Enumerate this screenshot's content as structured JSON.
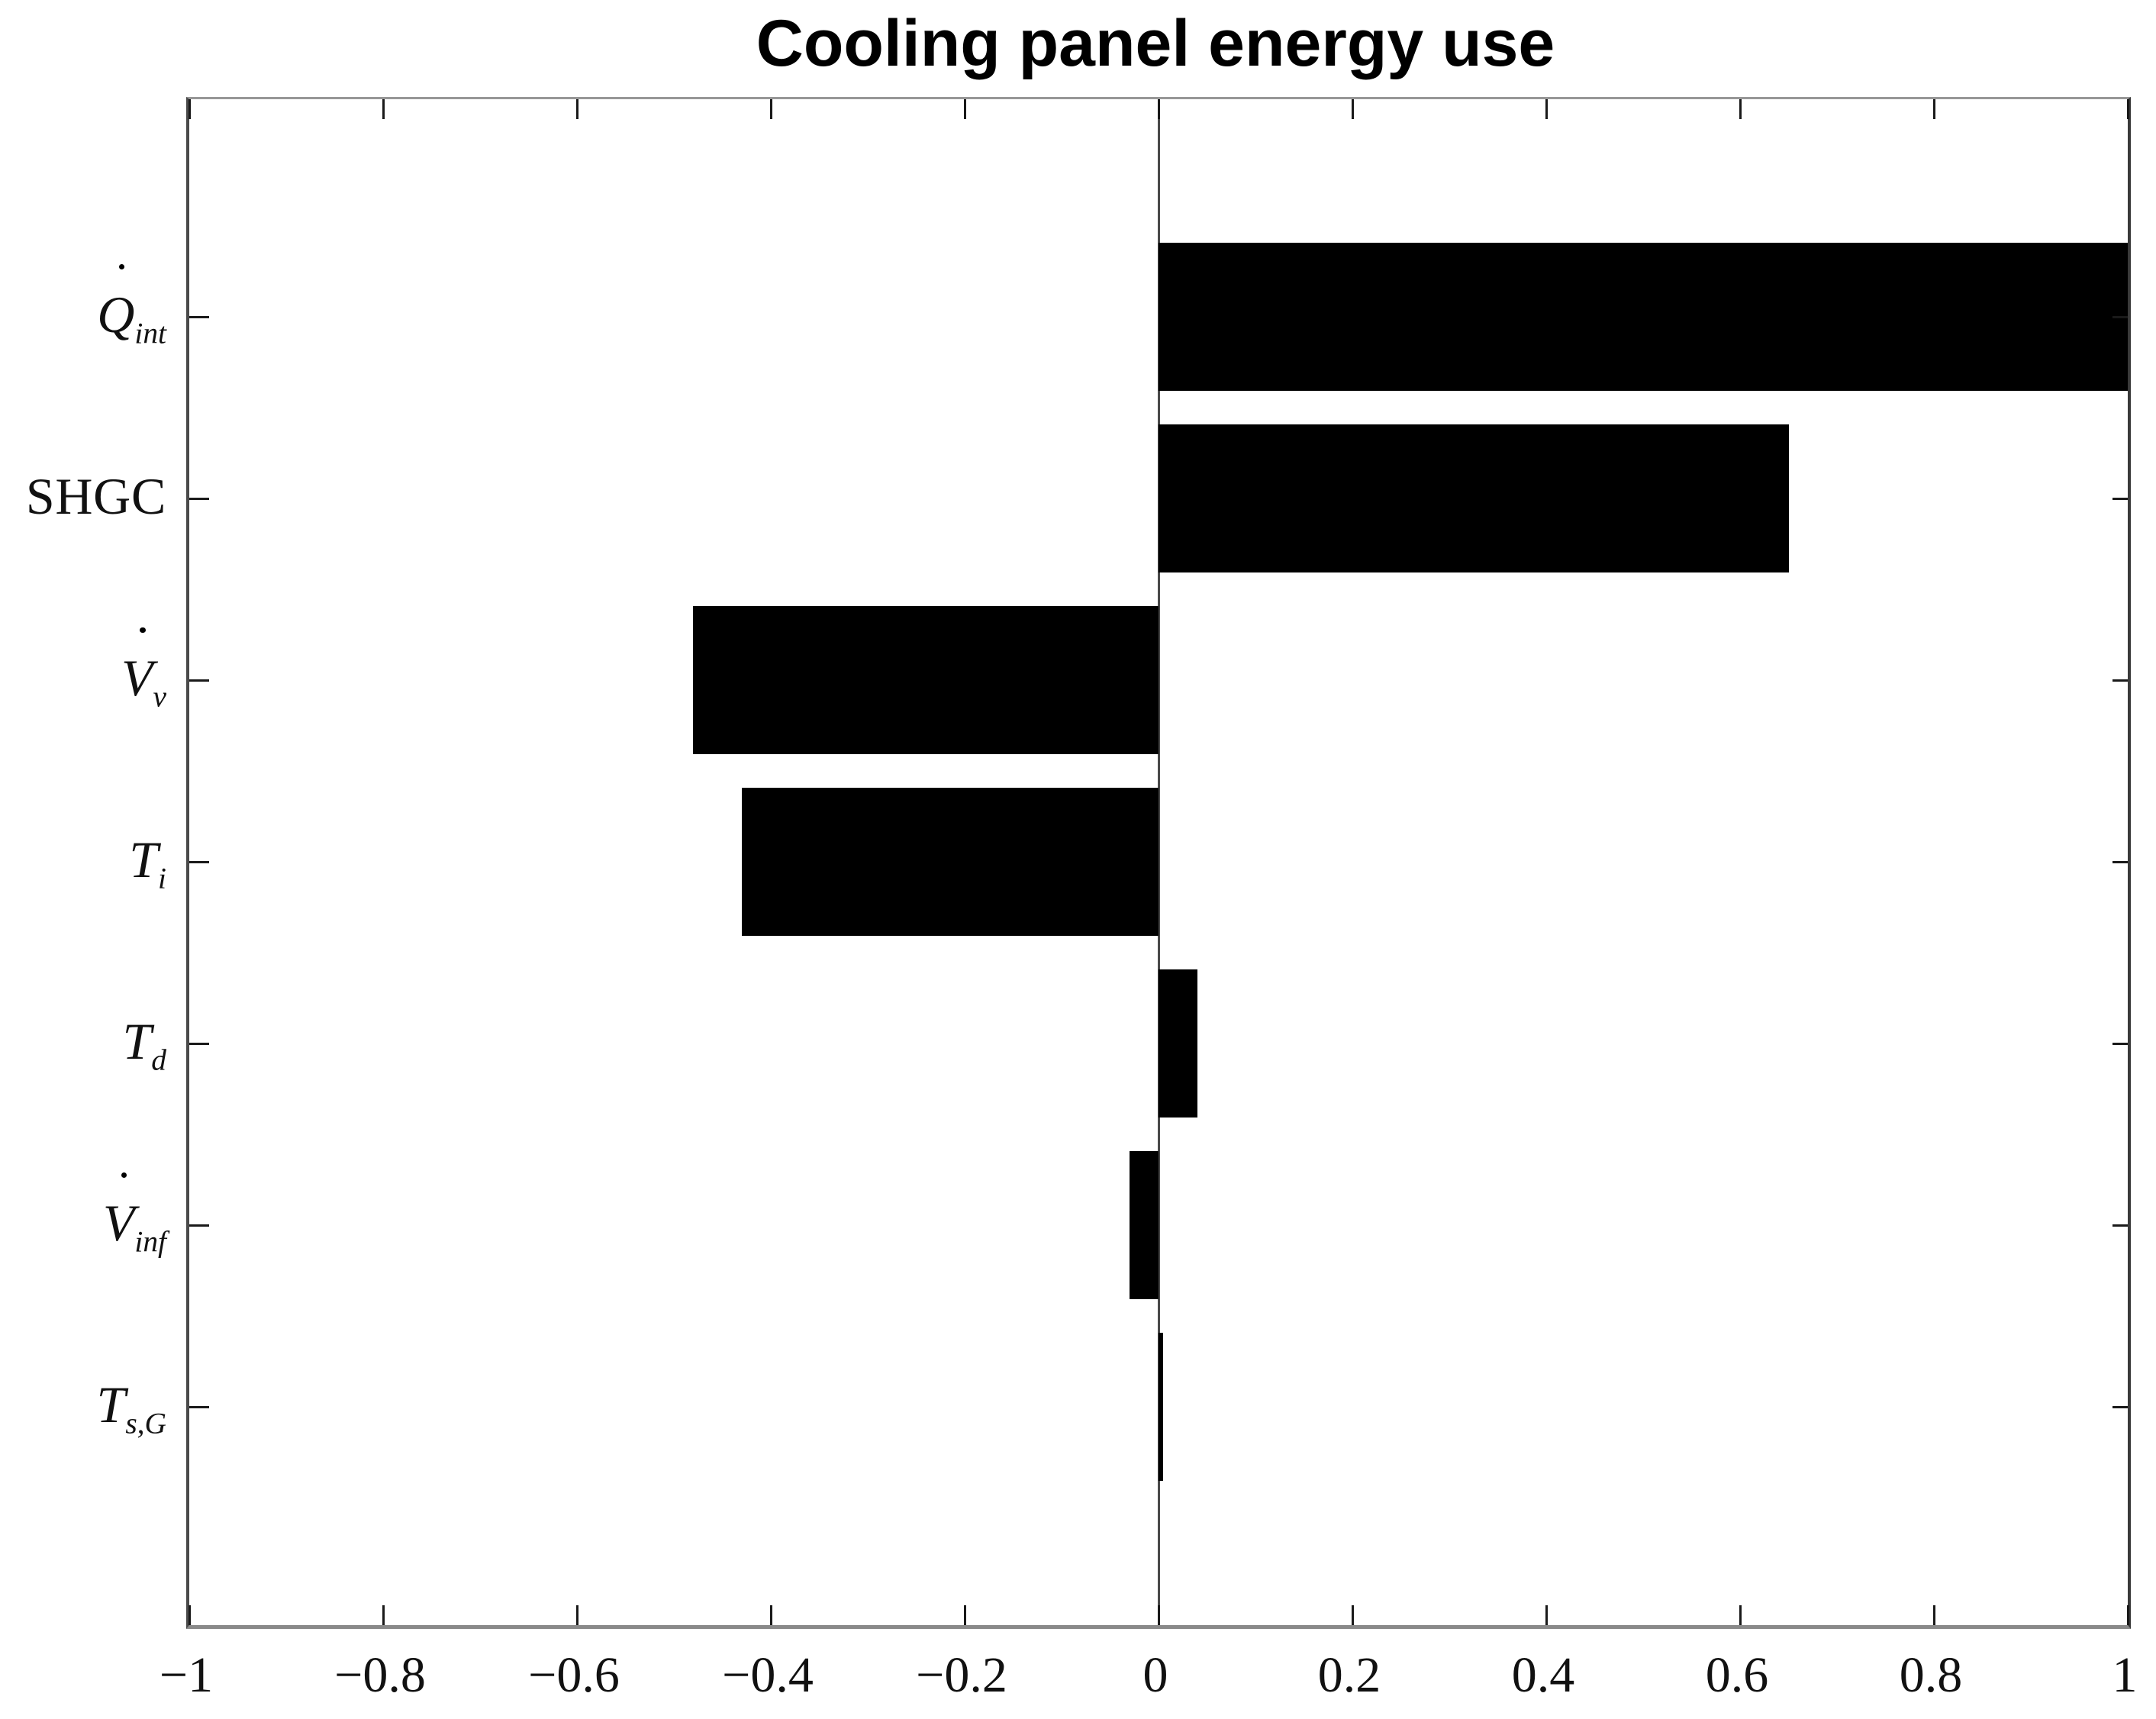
{
  "title": "Cooling panel energy use",
  "background_color": "#ffffff",
  "chart_data": {
    "type": "bar",
    "orientation": "horizontal",
    "title": "Cooling panel energy use",
    "categories": [
      "Q̇_int",
      "SHGC",
      "V̇_v",
      "T_i",
      "T_d",
      "V̇_inf",
      "T_s,G"
    ],
    "category_labels": [
      {
        "base": "Q",
        "overdot": true,
        "sub": "int",
        "italic": true
      },
      {
        "base": "SHGC",
        "overdot": false,
        "sub": "",
        "italic": false
      },
      {
        "base": "V",
        "overdot": true,
        "sub": "v",
        "italic": true
      },
      {
        "base": "T",
        "overdot": false,
        "sub": "i",
        "italic": true
      },
      {
        "base": "T",
        "overdot": false,
        "sub": "d",
        "italic": true
      },
      {
        "base": "V",
        "overdot": true,
        "sub": "inf",
        "italic": true
      },
      {
        "base": "T",
        "overdot": false,
        "sub": "s,G",
        "italic": true
      }
    ],
    "values": [
      1.0,
      0.65,
      -0.48,
      -0.43,
      0.04,
      -0.03,
      0.005
    ],
    "bar_color": "#000000",
    "xlim": [
      -1,
      1
    ],
    "x_ticks": [
      -1,
      -0.8,
      -0.6,
      -0.4,
      -0.2,
      0,
      0.2,
      0.4,
      0.6,
      0.8,
      1
    ],
    "x_tick_labels": [
      "−1",
      "−0.8",
      "−0.6",
      "−0.4",
      "−0.2",
      "0",
      "0.2",
      "0.4",
      "0.6",
      "0.8",
      "1"
    ],
    "grid": false,
    "zero_line": true,
    "legend": null
  }
}
